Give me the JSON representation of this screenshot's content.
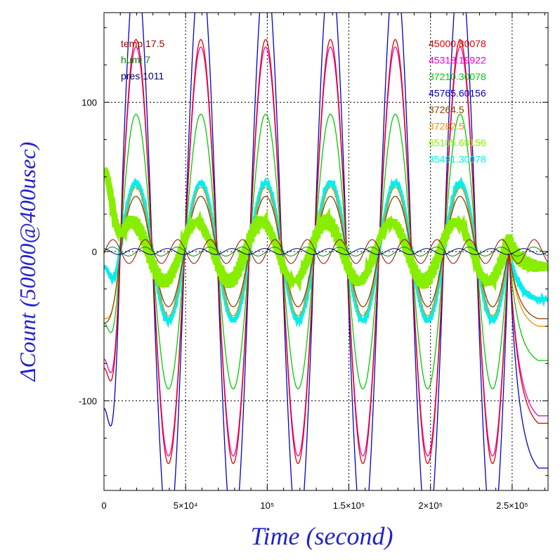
{
  "chart_data": {
    "type": "line",
    "xlabel": "Time (second)",
    "ylabel": "ΔCount (50000@400usec)",
    "xlim": [
      0,
      272000
    ],
    "ylim": [
      -160,
      160
    ],
    "grid": true,
    "x_ticks": [
      {
        "value": 0,
        "label": "0"
      },
      {
        "value": 50000,
        "label": "5×10⁴"
      },
      {
        "value": 100000,
        "label": "10⁵"
      },
      {
        "value": 150000,
        "label": "1.5×10⁵"
      },
      {
        "value": 200000,
        "label": "2×10⁵"
      },
      {
        "value": 250000,
        "label": "2.5×10⁵"
      }
    ],
    "y_ticks": [
      {
        "value": -100,
        "label": "-100"
      },
      {
        "value": 0,
        "label": "0"
      },
      {
        "value": 100,
        "label": "100"
      }
    ],
    "env_legend": [
      {
        "label": "temp 17.5",
        "color": "#990000"
      },
      {
        "label": "humi 7",
        "color": "#008800"
      },
      {
        "label": "pres 1011",
        "color": "#000066"
      }
    ],
    "legend_position": "top-right",
    "period": 39700,
    "series": [
      {
        "name": "45000.80078",
        "color": "#dd0000",
        "amplitude": 142,
        "phase": 9700,
        "start": -78,
        "tail_end": -115,
        "jitter": 0
      },
      {
        "name": "45318.19922",
        "color": "#ee00cc",
        "amplitude": 137,
        "phase": 9700,
        "start": -72,
        "tail_end": -110,
        "jitter": 0
      },
      {
        "name": "37210.30078",
        "color": "#00cc00",
        "amplitude": 92,
        "phase": 9700,
        "start": -48,
        "tail_end": -73,
        "jitter": 0
      },
      {
        "name": "45765.60156",
        "color": "#0000cc",
        "amplitude": 192,
        "phase": 9700,
        "start": -105,
        "tail_end": -145,
        "jitter": 0
      },
      {
        "name": "37264.5",
        "color": "#884400",
        "amplitude": 37,
        "phase": 9700,
        "start": -48,
        "tail_end": -45,
        "jitter": 0
      },
      {
        "name": "37282.5",
        "color": "#ff8800",
        "amplitude": 43,
        "phase": 9700,
        "start": -45,
        "tail_end": -50,
        "jitter": 0
      },
      {
        "name": "65105.60156",
        "color": "#88ee00",
        "amplitude": 20,
        "phase": 7200,
        "start": 55,
        "tail_end": -10,
        "jitter": 5
      },
      {
        "name": "35491.30078",
        "color": "#00eeee",
        "amplitude": 46,
        "phase": 9700,
        "start": -10,
        "tail_end": -32,
        "jitter": 2
      }
    ],
    "env_series": [
      {
        "name": "temp",
        "color": "#990000",
        "amplitude": 8,
        "phase": 500
      },
      {
        "name": "humi",
        "color": "#008800",
        "amplitude": 3,
        "phase": 20000
      },
      {
        "name": "pres",
        "color": "#000066",
        "amplitude": 2,
        "phase": 14000
      }
    ]
  }
}
